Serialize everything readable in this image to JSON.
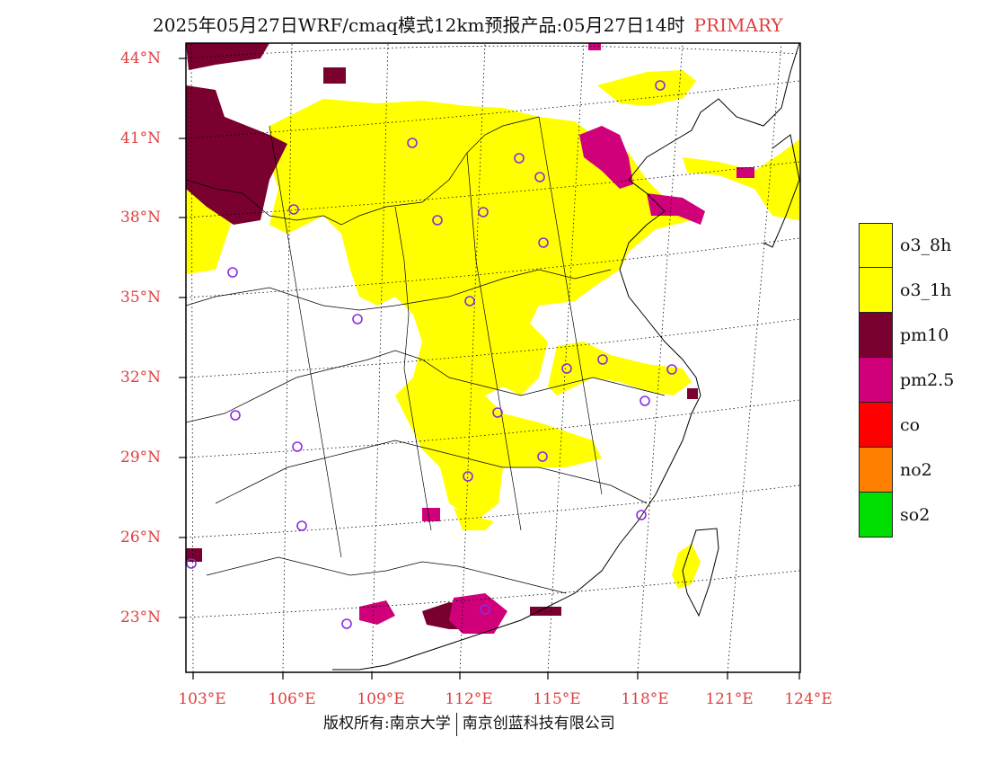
{
  "title": {
    "main": "2025年05月27日WRF/cmaq模式12km预报产品:05月27日14时",
    "tag": "PRIMARY"
  },
  "lat_labels": [
    "44°N",
    "41°N",
    "38°N",
    "35°N",
    "32°N",
    "29°N",
    "26°N",
    "23°N"
  ],
  "lon_labels": [
    "103°E",
    "106°E",
    "109°E",
    "112°E",
    "115°E",
    "118°E",
    "121°E",
    "124°E"
  ],
  "legend": [
    {
      "label": "o3_8h",
      "color": "#ffff00"
    },
    {
      "label": "o3_1h",
      "color": "#ffff00"
    },
    {
      "label": "pm10",
      "color": "#7a0030"
    },
    {
      "label": "pm2.5",
      "color": "#d0007a"
    },
    {
      "label": "co",
      "color": "#ff0000"
    },
    {
      "label": "no2",
      "color": "#ff8000"
    },
    {
      "label": "so2",
      "color": "#00dd00"
    }
  ],
  "colors": {
    "o3": "#ffff00",
    "pm10": "#7a0030",
    "pm25": "#d0007a",
    "station_marker": "#8a2be2",
    "axis_label": "#e04040"
  },
  "footer": {
    "left": "版权所有:南京大学",
    "right": "南京创蓝科技有限公司"
  }
}
